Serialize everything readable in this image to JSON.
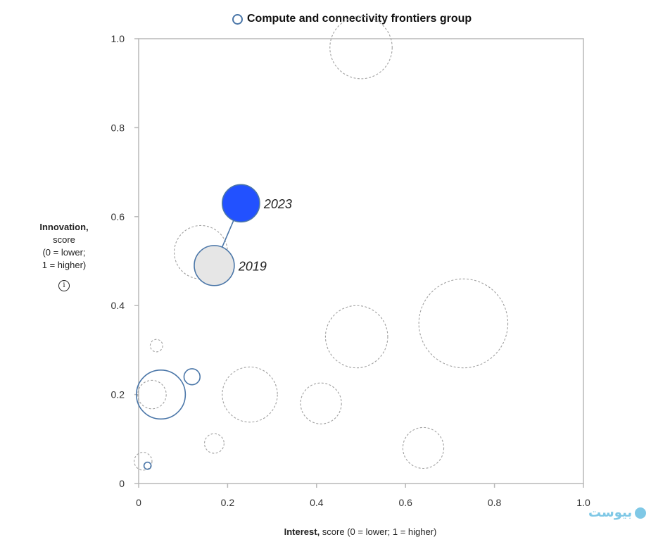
{
  "chart_data": {
    "type": "scatter",
    "legend": {
      "label": "Compute and connectivity frontiers group",
      "placement": "top-center"
    },
    "xlabel_bold": "Interest,",
    "xlabel_rest": " score (0 = lower; 1 = higher)",
    "ylabel_bold": "Innovation,",
    "ylabel_lines": [
      "score",
      "(0 = lower;",
      "1 = higher)"
    ],
    "xlim": [
      0,
      1.0
    ],
    "ylim": [
      0,
      1.0
    ],
    "xticks": [
      0,
      0.2,
      0.4,
      0.6,
      0.8,
      1.0
    ],
    "xtick_labels": [
      "0",
      "0.2",
      "0.4",
      "0.6",
      "0.8",
      "1.0"
    ],
    "yticks": [
      0,
      0.2,
      0.4,
      0.6,
      0.8,
      1.0
    ],
    "ytick_labels": [
      "0",
      "0.2",
      "0.4",
      "0.6",
      "0.8",
      "1.0"
    ],
    "grid": false,
    "highlight": {
      "from": {
        "label": "2019",
        "x": 0.17,
        "y": 0.49,
        "size": 0.045
      },
      "to": {
        "label": "2023",
        "x": 0.23,
        "y": 0.63,
        "size": 0.042
      }
    },
    "group_points": [
      {
        "x": 0.05,
        "y": 0.2,
        "size": 0.055
      },
      {
        "x": 0.12,
        "y": 0.24,
        "size": 0.018
      },
      {
        "x": 0.02,
        "y": 0.04,
        "size": 0.008
      }
    ],
    "other_points": [
      {
        "x": 0.5,
        "y": 0.98,
        "size": 0.07
      },
      {
        "x": 0.14,
        "y": 0.52,
        "size": 0.06
      },
      {
        "x": 0.73,
        "y": 0.36,
        "size": 0.1
      },
      {
        "x": 0.49,
        "y": 0.33,
        "size": 0.07
      },
      {
        "x": 0.04,
        "y": 0.31,
        "size": 0.014
      },
      {
        "x": 0.25,
        "y": 0.2,
        "size": 0.062
      },
      {
        "x": 0.41,
        "y": 0.18,
        "size": 0.046
      },
      {
        "x": 0.03,
        "y": 0.2,
        "size": 0.032
      },
      {
        "x": 0.17,
        "y": 0.09,
        "size": 0.022
      },
      {
        "x": 0.64,
        "y": 0.08,
        "size": 0.046
      },
      {
        "x": 0.01,
        "y": 0.05,
        "size": 0.02
      }
    ],
    "colors": {
      "group": "#4a76a8",
      "highlight_2023": "#2251ff",
      "highlight_2019": "#e6e6e6",
      "other": "#a0a0a0",
      "axis": "#b8b8b8"
    }
  },
  "info_icon": "info-icon",
  "info_icon_glyph": "i",
  "watermark_icon": "logo-icon",
  "watermark_text": "بیوست"
}
